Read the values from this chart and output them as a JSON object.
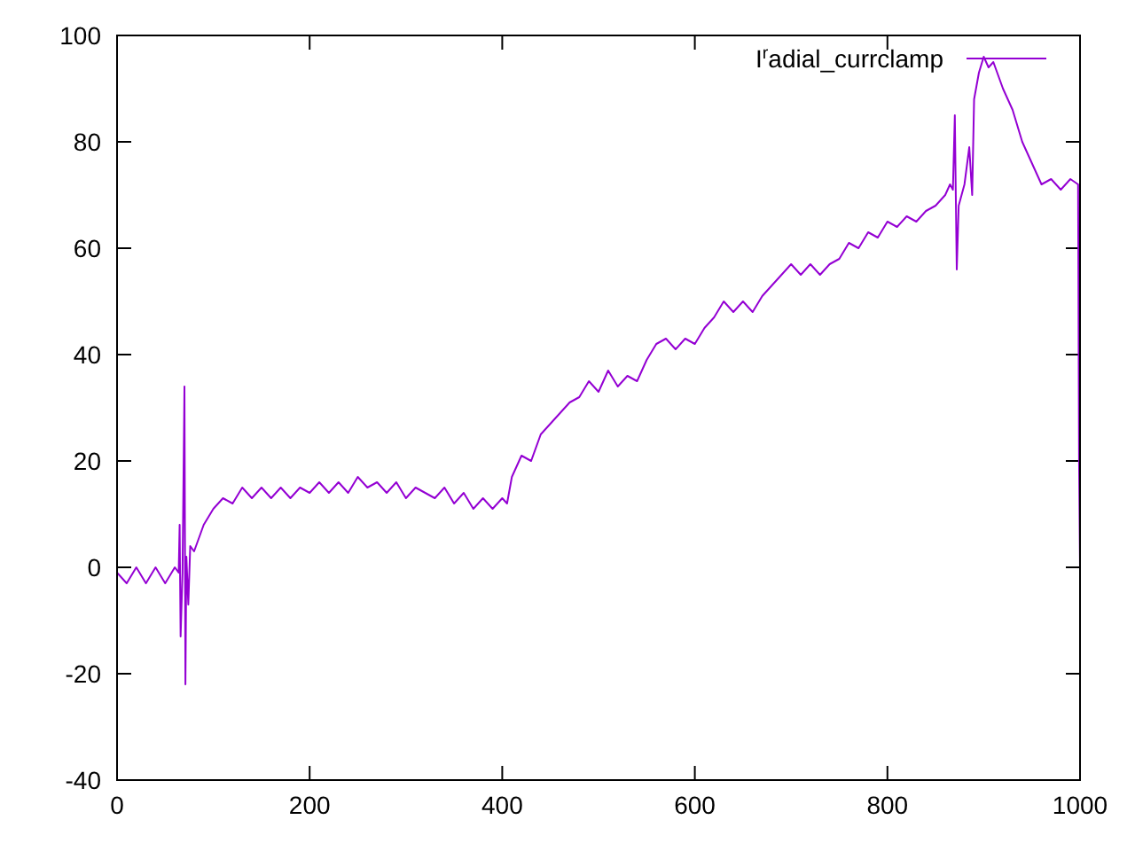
{
  "chart_data": {
    "type": "line",
    "xlim": [
      0,
      1000
    ],
    "ylim": [
      -40,
      100
    ],
    "xticks": [
      0,
      200,
      400,
      600,
      800,
      1000
    ],
    "yticks": [
      -40,
      -20,
      0,
      20,
      40,
      60,
      80,
      100
    ],
    "legend": "top right",
    "grid": false,
    "marker": "none",
    "line_style": "solid",
    "series": [
      {
        "name": "I$^{r}$adial_currclamp",
        "color": "#9400d3",
        "x": [
          0,
          10,
          20,
          30,
          40,
          50,
          60,
          64,
          65,
          66,
          68,
          70,
          71,
          72,
          74,
          76,
          80,
          90,
          100,
          110,
          120,
          130,
          140,
          150,
          160,
          170,
          180,
          190,
          200,
          210,
          220,
          230,
          240,
          250,
          260,
          270,
          280,
          290,
          300,
          310,
          320,
          330,
          340,
          350,
          360,
          370,
          380,
          390,
          400,
          405,
          410,
          420,
          430,
          440,
          450,
          460,
          470,
          480,
          490,
          500,
          510,
          520,
          530,
          540,
          550,
          560,
          570,
          580,
          590,
          600,
          610,
          620,
          630,
          640,
          650,
          660,
          670,
          680,
          690,
          700,
          710,
          720,
          730,
          740,
          750,
          760,
          770,
          780,
          790,
          800,
          810,
          820,
          830,
          840,
          850,
          860,
          865,
          868,
          870,
          871,
          872,
          874,
          880,
          885,
          888,
          890,
          895,
          900,
          905,
          910,
          920,
          930,
          940,
          950,
          960,
          970,
          980,
          990,
          998,
          999,
          1000
        ],
        "values": [
          -1,
          -3,
          0,
          -3,
          0,
          -3,
          0,
          -1,
          8,
          -13,
          -1,
          34,
          -22,
          2,
          -7,
          4,
          3,
          8,
          11,
          13,
          12,
          15,
          13,
          15,
          13,
          15,
          13,
          15,
          14,
          16,
          14,
          16,
          14,
          17,
          15,
          16,
          14,
          16,
          13,
          15,
          14,
          13,
          15,
          12,
          14,
          11,
          13,
          11,
          13,
          12,
          17,
          21,
          20,
          25,
          27,
          29,
          31,
          32,
          35,
          33,
          37,
          34,
          36,
          35,
          39,
          42,
          43,
          41,
          43,
          42,
          45,
          47,
          50,
          48,
          50,
          48,
          51,
          53,
          55,
          57,
          55,
          57,
          55,
          57,
          58,
          61,
          60,
          63,
          62,
          65,
          64,
          66,
          65,
          67,
          68,
          70,
          72,
          71,
          85,
          70,
          56,
          68,
          72,
          79,
          70,
          88,
          93,
          96,
          94,
          95,
          90,
          86,
          80,
          76,
          72,
          73,
          71,
          73,
          72,
          20,
          0
        ]
      }
    ]
  }
}
